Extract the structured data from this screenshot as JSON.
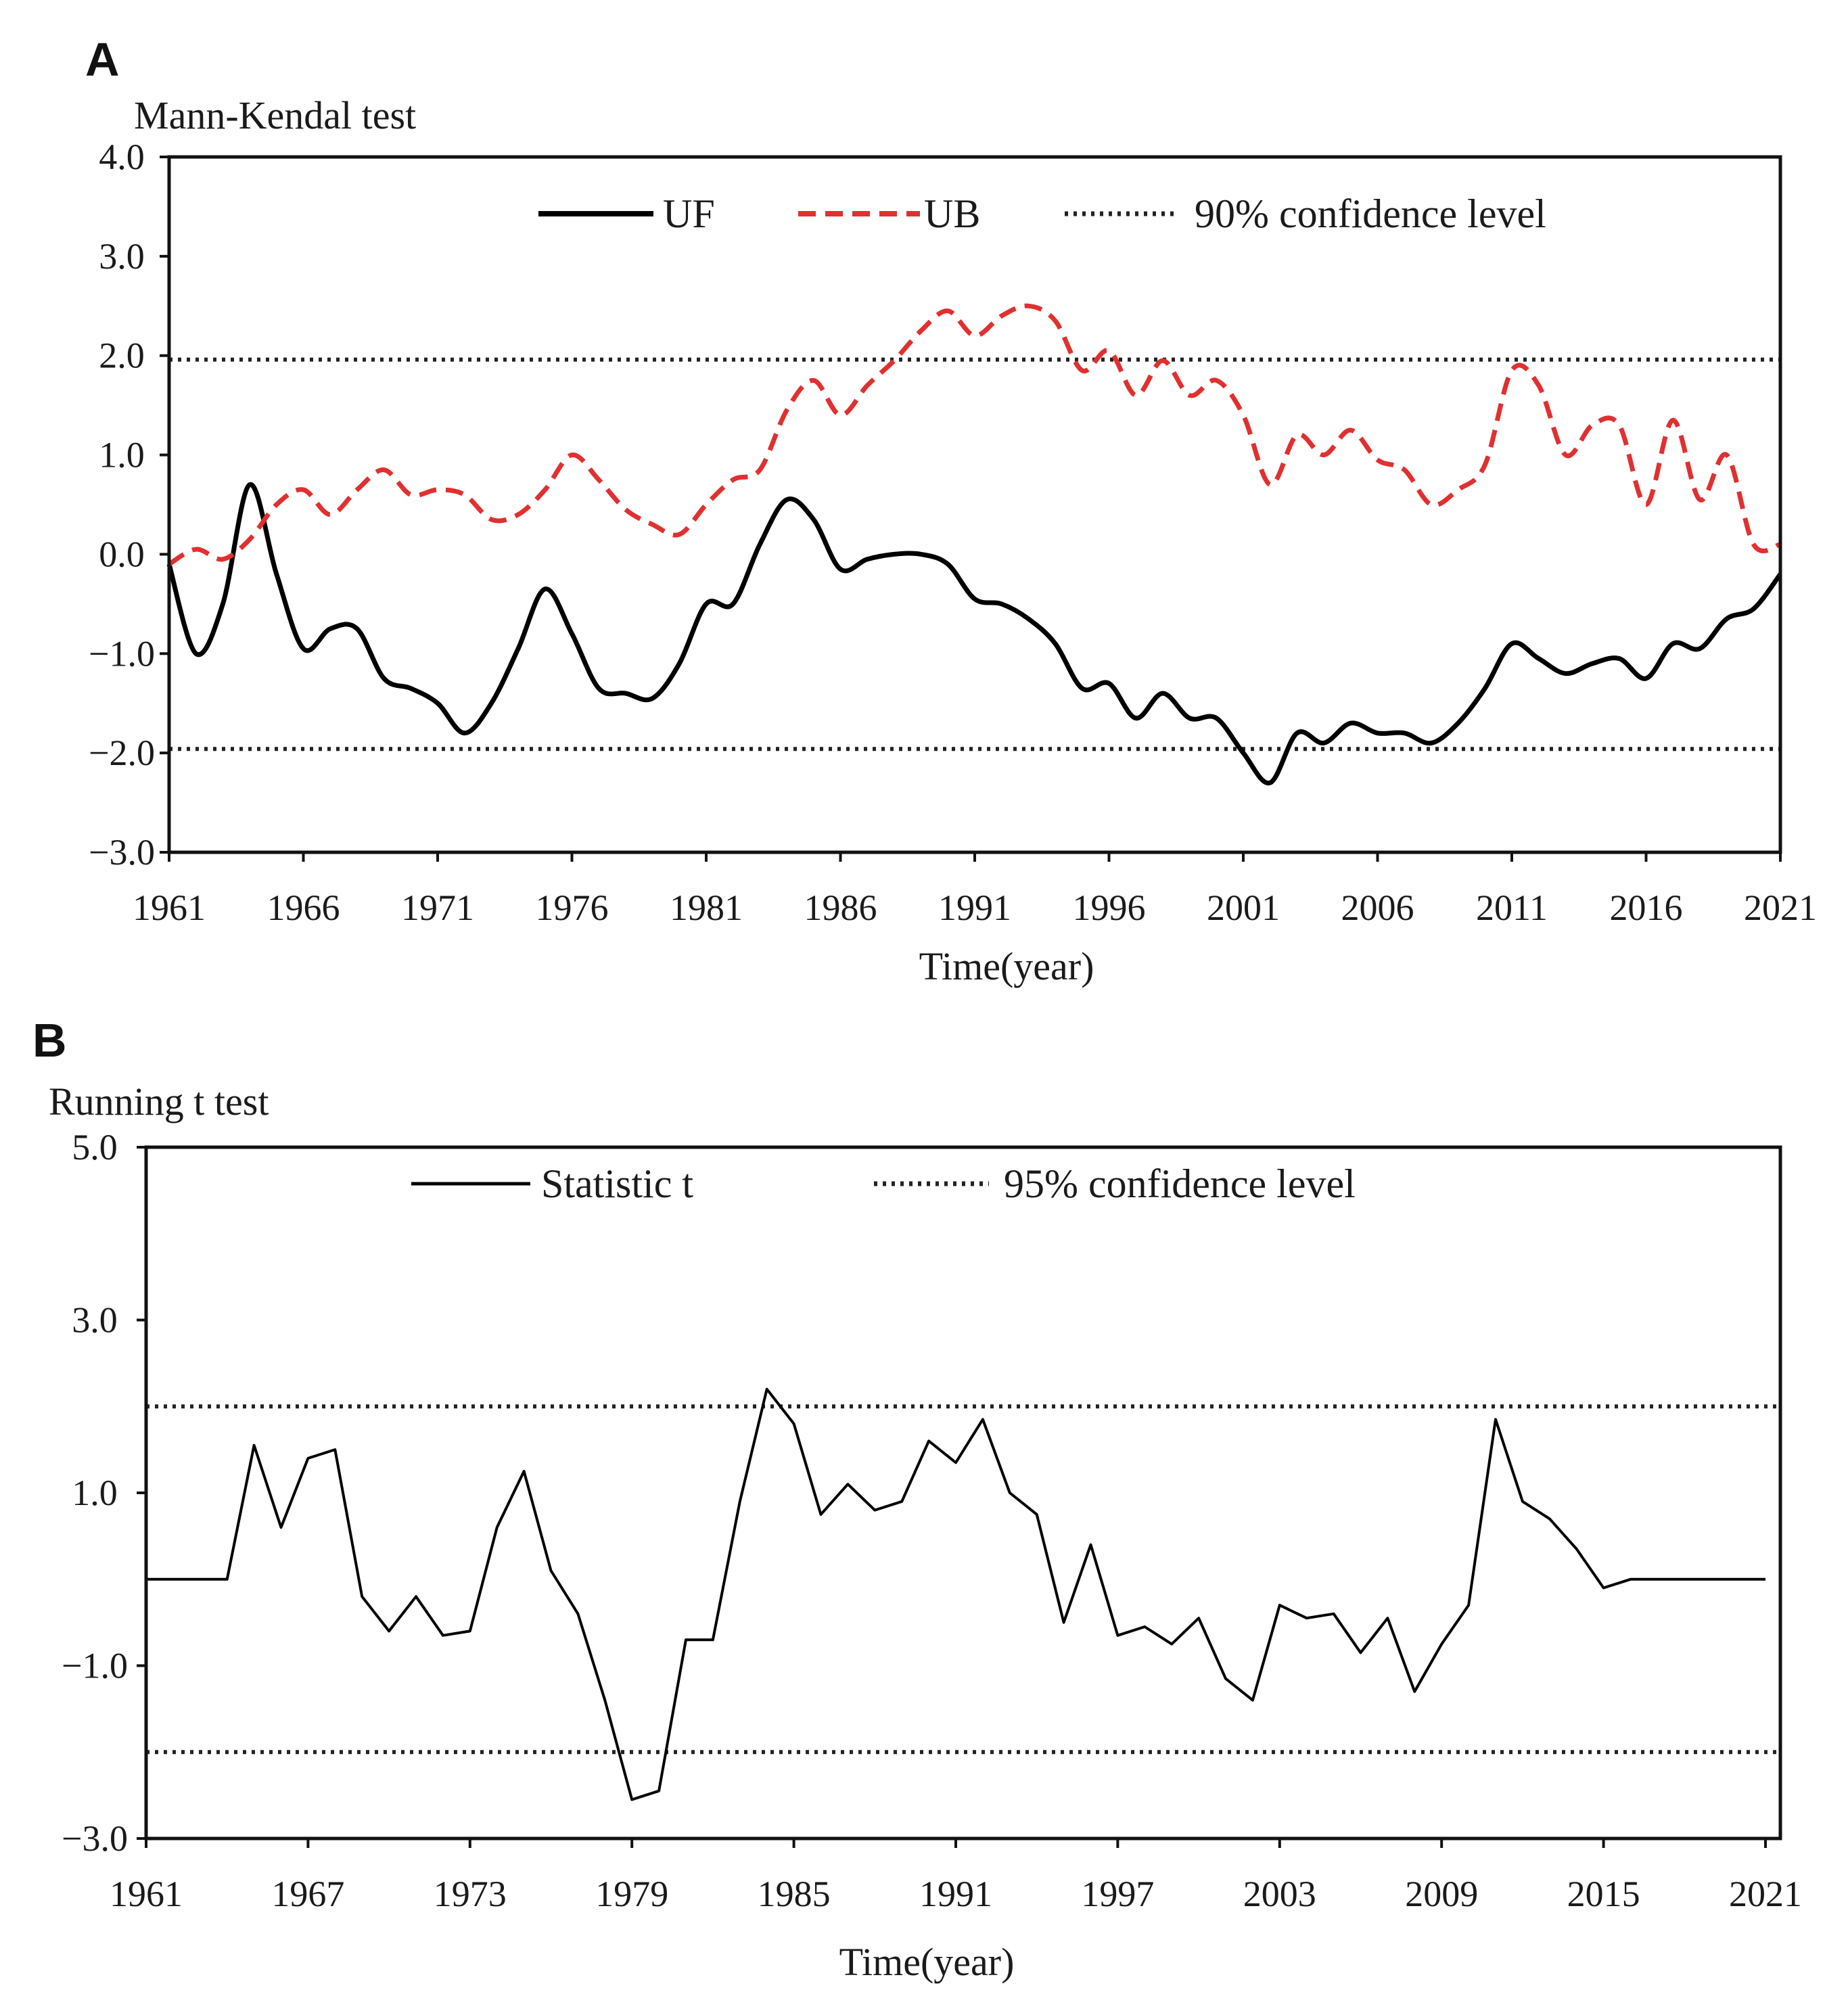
{
  "chart_data": [
    {
      "panel": "A",
      "type": "line",
      "ylabel": "Mann-Kendal  test",
      "xlabel": "Time(year)",
      "ylim": [
        -3.0,
        4.0
      ],
      "xlim": [
        1961,
        2021
      ],
      "xticks": [
        "1961",
        "1966",
        "1971",
        "1976",
        "1981",
        "1986",
        "1991",
        "1996",
        "2001",
        "2006",
        "2011",
        "2016",
        "2021"
      ],
      "yticks": [
        "4.0",
        "3.0",
        "2.0",
        "1.0",
        "0.0",
        "−1.0",
        "−2.0",
        "−3.0"
      ],
      "x": [
        1961,
        1962,
        1963,
        1964,
        1965,
        1966,
        1967,
        1968,
        1969,
        1970,
        1971,
        1972,
        1973,
        1974,
        1975,
        1976,
        1977,
        1978,
        1979,
        1980,
        1981,
        1982,
        1983,
        1984,
        1985,
        1986,
        1987,
        1988,
        1989,
        1990,
        1991,
        1992,
        1993,
        1994,
        1995,
        1996,
        1997,
        1998,
        1999,
        2000,
        2001,
        2002,
        2003,
        2004,
        2005,
        2006,
        2007,
        2008,
        2009,
        2010,
        2011,
        2012,
        2013,
        2014,
        2015,
        2016,
        2017,
        2018,
        2019,
        2020,
        2021
      ],
      "series": [
        {
          "name": "UF",
          "color": "#000000",
          "style": "solid",
          "values": [
            -0.1,
            -1.0,
            -0.5,
            0.7,
            -0.2,
            -0.95,
            -0.75,
            -0.75,
            -1.25,
            -1.35,
            -1.5,
            -1.8,
            -1.5,
            -0.95,
            -0.35,
            -0.8,
            -1.35,
            -1.4,
            -1.45,
            -1.1,
            -0.5,
            -0.5,
            0.1,
            0.55,
            0.35,
            -0.15,
            -0.05,
            0.0,
            0.0,
            -0.1,
            -0.45,
            -0.5,
            -0.65,
            -0.9,
            -1.35,
            -1.3,
            -1.65,
            -1.4,
            -1.65,
            -1.65,
            -2.0,
            -2.3,
            -1.8,
            -1.9,
            -1.7,
            -1.8,
            -1.8,
            -1.9,
            -1.7,
            -1.35,
            -0.9,
            -1.05,
            -1.2,
            -1.1,
            -1.05,
            -1.25,
            -0.9,
            -0.95,
            -0.65,
            -0.55,
            -0.2
          ]
        },
        {
          "name": "UB",
          "color": "#e03030",
          "style": "dashed",
          "values": [
            -0.1,
            0.05,
            -0.05,
            0.15,
            0.5,
            0.65,
            0.4,
            0.65,
            0.85,
            0.6,
            0.65,
            0.6,
            0.35,
            0.4,
            0.65,
            1.0,
            0.75,
            0.45,
            0.3,
            0.2,
            0.5,
            0.75,
            0.85,
            1.45,
            1.75,
            1.4,
            1.7,
            1.95,
            2.25,
            2.45,
            2.2,
            2.4,
            2.5,
            2.35,
            1.85,
            2.05,
            1.6,
            1.95,
            1.6,
            1.75,
            1.4,
            0.7,
            1.2,
            1.0,
            1.25,
            0.95,
            0.85,
            0.5,
            0.65,
            0.9,
            1.85,
            1.7,
            1.0,
            1.3,
            1.3,
            0.5,
            1.35,
            0.55,
            1.0,
            0.1,
            0.1
          ]
        },
        {
          "name": "90% confidence level",
          "color": "#222222",
          "style": "dotted",
          "lines": [
            1.96,
            -1.96
          ]
        }
      ],
      "legend": [
        "UF",
        "UB",
        "90% confidence level"
      ],
      "legend_position": "top"
    },
    {
      "panel": "B",
      "type": "line",
      "ylabel": "Running t test",
      "xlabel": "Time(year)",
      "ylim": [
        -3.0,
        5.0
      ],
      "xlim": [
        1961,
        2021
      ],
      "xticks": [
        "1961",
        "1967",
        "1973",
        "1979",
        "1985",
        "1991",
        "1997",
        "2003",
        "2009",
        "2015",
        "2021"
      ],
      "yticks": [
        "5.0",
        "3.0",
        "1.0",
        "−1.0",
        "−3.0"
      ],
      "x": [
        1961,
        1962,
        1963,
        1964,
        1965,
        1966,
        1967,
        1968,
        1969,
        1970,
        1971,
        1972,
        1973,
        1974,
        1975,
        1976,
        1977,
        1978,
        1979,
        1980,
        1981,
        1982,
        1983,
        1984,
        1985,
        1986,
        1987,
        1988,
        1989,
        1990,
        1991,
        1992,
        1993,
        1994,
        1995,
        1996,
        1997,
        1998,
        1999,
        2000,
        2001,
        2002,
        2003,
        2004,
        2005,
        2006,
        2007,
        2008,
        2009,
        2010,
        2011,
        2012,
        2013,
        2014,
        2015,
        2016,
        2017,
        2018,
        2019,
        2020,
        2021
      ],
      "series": [
        {
          "name": "Statistic t",
          "color": "#000000",
          "style": "solid",
          "values": [
            0,
            0,
            0,
            0,
            1.55,
            0.6,
            1.4,
            1.5,
            -0.2,
            -0.6,
            -0.2,
            -0.65,
            -0.6,
            0.6,
            1.25,
            0.1,
            -0.4,
            -1.4,
            -2.55,
            -2.45,
            -0.7,
            -0.7,
            0.9,
            2.2,
            1.8,
            0.75,
            1.1,
            0.8,
            0.9,
            1.6,
            1.35,
            1.85,
            1.0,
            0.75,
            -0.5,
            0.4,
            -0.65,
            -0.55,
            -0.75,
            -0.45,
            -1.15,
            -1.4,
            -0.3,
            -0.45,
            -0.4,
            -0.85,
            -0.45,
            -1.3,
            -0.75,
            -0.3,
            1.85,
            0.9,
            0.7,
            0.35,
            -0.1,
            0,
            0,
            0,
            0,
            0,
            0
          ]
        },
        {
          "name": "95% confidence level",
          "color": "#222222",
          "style": "dotted",
          "lines": [
            2.0,
            -2.0
          ]
        }
      ],
      "legend": [
        "Statistic t",
        "95% confidence level"
      ],
      "legend_position": "top"
    }
  ]
}
